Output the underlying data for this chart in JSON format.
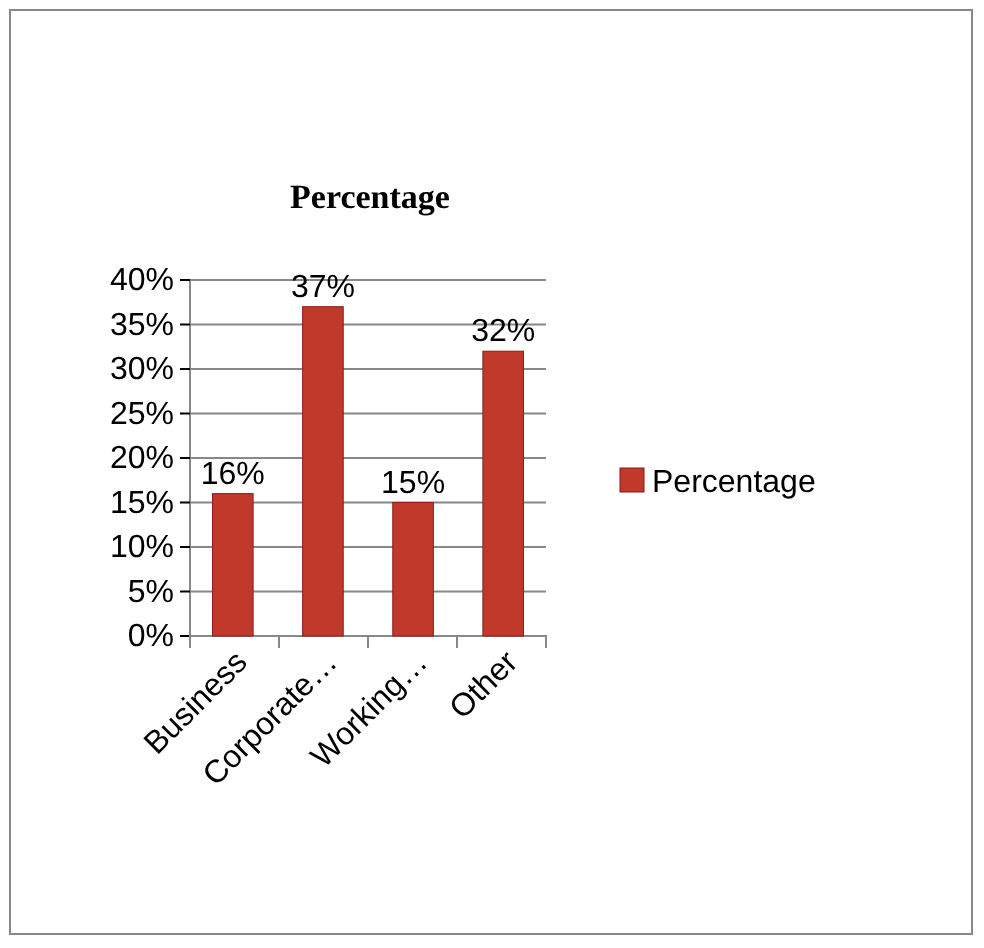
{
  "chart_data": {
    "type": "bar",
    "title": "Percentage",
    "categories": [
      "Business",
      "Corporate…",
      "Working…",
      "Other"
    ],
    "series": [
      {
        "name": "Percentage",
        "color": "#c0392b",
        "values": [
          16,
          37,
          15,
          32
        ],
        "value_labels": [
          "16%",
          "37%",
          "15%",
          "32%"
        ]
      }
    ],
    "ylim": [
      0,
      40
    ],
    "yticks": [
      {
        "value": 0,
        "label": "0%"
      },
      {
        "value": 5,
        "label": "5%"
      },
      {
        "value": 10,
        "label": "10%"
      },
      {
        "value": 15,
        "label": "15%"
      },
      {
        "value": 20,
        "label": "20%"
      },
      {
        "value": 25,
        "label": "25%"
      },
      {
        "value": 30,
        "label": "30%"
      },
      {
        "value": 35,
        "label": "35%"
      },
      {
        "value": 40,
        "label": "40%"
      }
    ],
    "grid": "y",
    "legend": "right"
  }
}
